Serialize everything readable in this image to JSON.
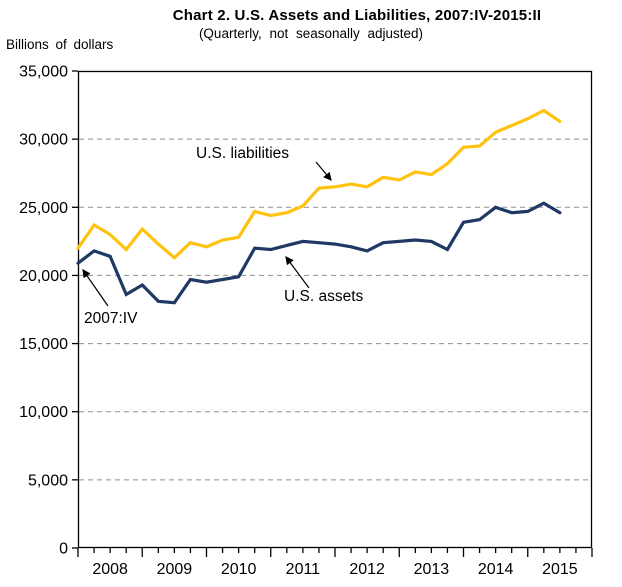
{
  "chart_data": {
    "type": "line",
    "title": "Chart 2. U.S. Assets and Liabilities, 2007:IV-2015:II",
    "subtitle": "(Quarterly, not seasonally adjusted)",
    "ylabel": "Billions of dollars",
    "xlabel": "",
    "grid": "horizontal-dashed",
    "legend": "inline-annotations",
    "ylim": [
      0,
      35000
    ],
    "ytick_interval": 5000,
    "ytick_labels": [
      "0",
      "5,000",
      "10,000",
      "15,000",
      "20,000",
      "25,000",
      "30,000",
      "35,000"
    ],
    "x_year_labels": [
      "2008",
      "2009",
      "2010",
      "2011",
      "2012",
      "2013",
      "2014",
      "2015"
    ],
    "x": [
      "2007:IV",
      "2008:I",
      "2008:II",
      "2008:III",
      "2008:IV",
      "2009:I",
      "2009:II",
      "2009:III",
      "2009:IV",
      "2010:I",
      "2010:II",
      "2010:III",
      "2010:IV",
      "2011:I",
      "2011:II",
      "2011:III",
      "2011:IV",
      "2012:I",
      "2012:II",
      "2012:III",
      "2012:IV",
      "2013:I",
      "2013:II",
      "2013:III",
      "2013:IV",
      "2014:I",
      "2014:II",
      "2014:III",
      "2014:IV",
      "2015:I",
      "2015:II"
    ],
    "series": [
      {
        "name": "U.S. liabilities",
        "color": "#FFC20E",
        "values": [
          22000,
          23700,
          23000,
          21900,
          23400,
          22300,
          21300,
          22400,
          22100,
          22600,
          22800,
          24700,
          24400,
          24600,
          25100,
          26400,
          26500,
          26700,
          26500,
          27200,
          27000,
          27600,
          27400,
          28200,
          29400,
          29500,
          30500,
          31000,
          31500,
          32100,
          31300
        ]
      },
      {
        "name": "U.S. assets",
        "color": "#1F3864",
        "values": [
          20900,
          21800,
          21400,
          18600,
          19300,
          18100,
          18000,
          19700,
          19500,
          19700,
          19900,
          22000,
          21900,
          22200,
          22500,
          22400,
          22300,
          22100,
          21800,
          22400,
          22500,
          22600,
          22500,
          21900,
          23900,
          24100,
          25000,
          24600,
          24700,
          25300,
          24600
        ]
      }
    ],
    "annotations": [
      {
        "text": "U.S. liabilities",
        "text_x": 196,
        "text_y": 158,
        "arrow": [
          316,
          162,
          331,
          180
        ]
      },
      {
        "text": "U.S. assets",
        "text_x": 284,
        "text_y": 301,
        "arrow": [
          309,
          288,
          286,
          257
        ]
      },
      {
        "text": "2007:IV",
        "text_x": 84,
        "text_y": 323,
        "arrow": [
          108,
          306,
          83,
          270
        ]
      }
    ],
    "annotation_color": "#000000",
    "gridline_color": "#8F8F8F",
    "axis_color": "#000000"
  }
}
